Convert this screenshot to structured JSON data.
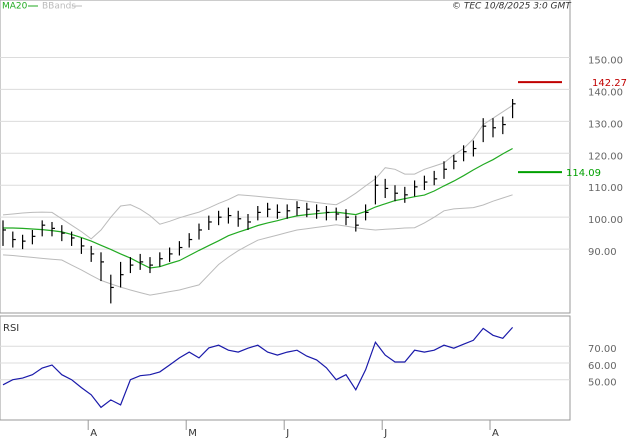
{
  "chart_data": [
    {
      "type": "ohlc",
      "categories": [
        null,
        null,
        null,
        null,
        null,
        null,
        null,
        null,
        null,
        "A",
        null,
        null,
        null,
        null,
        null,
        null,
        null,
        null,
        null,
        "M",
        null,
        null,
        null,
        null,
        null,
        null,
        null,
        null,
        null,
        "J",
        null,
        null,
        null,
        null,
        null,
        null,
        null,
        null,
        null,
        "J",
        null,
        null,
        null,
        null,
        null,
        null,
        null,
        null,
        null,
        null,
        "A",
        null,
        null
      ],
      "high": [
        99,
        95.5,
        94.5,
        96,
        99,
        98.5,
        97.5,
        95.5,
        93.5,
        91,
        89,
        82,
        86,
        87.5,
        88.5,
        87.5,
        89,
        90.5,
        92.5,
        95,
        98,
        100.5,
        102,
        103,
        102,
        101,
        103.5,
        104.5,
        104,
        104,
        105,
        104.5,
        104,
        103.5,
        103,
        102.5,
        100.5,
        104,
        113,
        112,
        110,
        109.5,
        111.5,
        113,
        114.5,
        117.5,
        119.5,
        122.5,
        124,
        131,
        131,
        131.5,
        137
      ],
      "low": [
        91,
        90.5,
        90,
        91.5,
        94,
        94,
        92.5,
        91,
        88.5,
        86,
        80,
        73,
        78,
        82.5,
        83.5,
        82.5,
        84.5,
        86,
        88,
        90.5,
        93,
        96,
        97.5,
        98,
        97,
        96,
        99,
        100,
        99.5,
        99.5,
        100.5,
        100,
        99.5,
        99,
        99,
        97.5,
        95.5,
        99,
        104,
        106,
        105,
        104.5,
        106.5,
        108.5,
        110,
        112,
        115,
        117.5,
        119,
        123.5,
        125,
        126,
        131
      ],
      "close": [
        96,
        93,
        92.5,
        94,
        97.5,
        96.5,
        95,
        93.5,
        91,
        88.5,
        86,
        78,
        82,
        85,
        86,
        85,
        87,
        88.5,
        90.5,
        93,
        96,
        98.5,
        100,
        100.5,
        99.5,
        98.5,
        101.5,
        102.5,
        101.5,
        102,
        103,
        102.5,
        102,
        101.5,
        101,
        100,
        97.5,
        101.5,
        110,
        109,
        107.5,
        107,
        109.5,
        111,
        112,
        115,
        117.5,
        120.5,
        121.5,
        128.5,
        128,
        129,
        135.5
      ],
      "color": "#000000",
      "series": [
        {
          "name": "MA20",
          "color": "#22aa22",
          "values": [
            96.6,
            96.6,
            96.5,
            96.3,
            96.1,
            95.8,
            95.4,
            94.6,
            93.6,
            92.5,
            91.2,
            89.9,
            88.5,
            87.2,
            85.6,
            84.1,
            84.5,
            85.5,
            86.4,
            88,
            89.6,
            91.1,
            92.6,
            94.2,
            95.3,
            96.3,
            97.4,
            98.2,
            98.9,
            99.7,
            100.4,
            100.8,
            101.1,
            101.4,
            101.6,
            101.2,
            100.8,
            101.8,
            103.2,
            104.2,
            105.2,
            105.8,
            106.4,
            106.9,
            108.2,
            109.8,
            111.3,
            113,
            114.8,
            116.5,
            118,
            119.8,
            121.5
          ]
        },
        {
          "name": "BBands",
          "color": "#bbbbbb",
          "upper": [
            100.7,
            101,
            101.3,
            101.5,
            101.6,
            101.5,
            99.5,
            97.5,
            95.5,
            93.2,
            96,
            100,
            103.5,
            103.9,
            102.5,
            100.5,
            97.8,
            98.7,
            99.8,
            100.7,
            101.6,
            102.9,
            104.3,
            105.5,
            107,
            106.8,
            106.5,
            106.2,
            105.9,
            105.6,
            105.4,
            105,
            104.6,
            104.2,
            103.9,
            105.5,
            107.5,
            109.8,
            112,
            115.5,
            115,
            113.5,
            113.5,
            115,
            116,
            117,
            119.5,
            121.5,
            124.5,
            129,
            131,
            133,
            135
          ],
          "lower": [
            88.2,
            88,
            87.7,
            87.4,
            87.1,
            86.8,
            86.6,
            85,
            83.5,
            81.8,
            80.2,
            79.1,
            78.1,
            77.2,
            76.4,
            75.6,
            76.1,
            76.7,
            77.2,
            78,
            78.8,
            82,
            85.2,
            87.5,
            89.5,
            91.2,
            92.8,
            93.6,
            94.4,
            95.2,
            96,
            96.4,
            96.8,
            97.2,
            97.6,
            97.2,
            96.7,
            96.3,
            96,
            96.2,
            96.4,
            96.6,
            96.7,
            98.2,
            100,
            102,
            102.6,
            102.8,
            103,
            103.8,
            105,
            106,
            107
          ]
        }
      ],
      "reference_lines": [
        {
          "value": 142.27,
          "label": "142.27",
          "color": "#c00000"
        },
        {
          "value": 114.09,
          "label": "114.09",
          "color": "#00a000"
        }
      ],
      "ylim": [
        70,
        168
      ],
      "yticks": [
        {
          "value": 90,
          "label": "90.00"
        },
        {
          "value": 100,
          "label": "100.00"
        },
        {
          "value": 110,
          "label": "110.00"
        },
        {
          "value": 120,
          "label": "120.00"
        },
        {
          "value": 130,
          "label": "130.00"
        },
        {
          "value": 140,
          "label": "140.00"
        },
        {
          "value": 150,
          "label": "150.00"
        }
      ],
      "grid": true,
      "source": "© TEC 10/8/2025 3:0 GMT"
    },
    {
      "type": "line",
      "title": "RSI",
      "color": "#1a1aaa",
      "values": [
        47,
        50,
        51,
        53,
        57,
        58.8,
        53,
        50,
        45.3,
        41,
        33.5,
        38,
        35,
        50,
        52.4,
        53,
        54.7,
        58.8,
        63,
        66.5,
        63,
        69,
        70.6,
        67.6,
        66.5,
        68.8,
        70.6,
        66.5,
        64.7,
        66.5,
        67.6,
        64.1,
        61.8,
        57.1,
        50,
        53,
        44,
        55.9,
        72.4,
        64.7,
        60.6,
        60.6,
        67.6,
        66.5,
        67.6,
        70.6,
        68.8,
        71.2,
        73.5,
        80.6,
        76.5,
        74.7,
        81.2
      ],
      "ylim": [
        26,
        88
      ],
      "yticks": [
        {
          "value": 50,
          "label": "50.00"
        },
        {
          "value": 60,
          "label": "60.00"
        },
        {
          "value": 70,
          "label": "70.00"
        }
      ],
      "grid": true
    }
  ]
}
